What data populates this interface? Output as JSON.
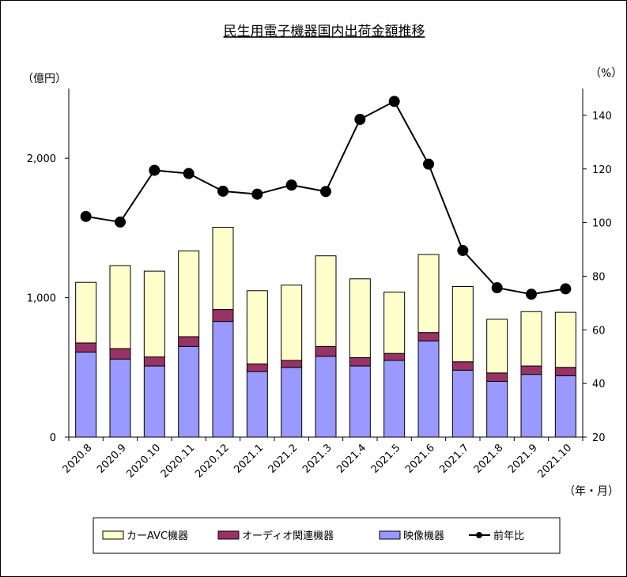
{
  "chart_data": {
    "type": "bar",
    "stacked": true,
    "title": "民生用電子機器国内出荷金額推移",
    "ylabel_left": "（億円）",
    "ylabel_right": "（%）",
    "xlabel": "（年・月）",
    "categories": [
      "2020.8",
      "2020.9",
      "2020.10",
      "2020.11",
      "2020.12",
      "2021.1",
      "2021.2",
      "2021.3",
      "2021.4",
      "2021.5",
      "2021.6",
      "2021.7",
      "2021.8",
      "2021.9",
      "2021.10"
    ],
    "ylim_left": [
      0,
      2500
    ],
    "yticks_left": [
      0,
      1000,
      2000
    ],
    "ytick_labels_left": [
      "0",
      "1,000",
      "2,000"
    ],
    "ylim_right": [
      20,
      150
    ],
    "yticks_right": [
      20,
      40,
      60,
      80,
      100,
      120,
      140
    ],
    "series": [
      {
        "name": "映像機器",
        "color": "#9999ff",
        "values": [
          610,
          560,
          510,
          650,
          830,
          470,
          500,
          580,
          510,
          550,
          690,
          480,
          400,
          450,
          440
        ]
      },
      {
        "name": "オーディオ関連機器",
        "color": "#993366",
        "values": [
          65,
          75,
          65,
          70,
          85,
          55,
          50,
          70,
          60,
          50,
          60,
          60,
          60,
          60,
          60
        ]
      },
      {
        "name": "カーAVC機器",
        "color": "#ffffcc",
        "values": [
          435,
          595,
          615,
          615,
          590,
          525,
          540,
          650,
          565,
          440,
          560,
          540,
          385,
          390,
          395
        ]
      }
    ],
    "line": {
      "name": "前年比",
      "axis": "right",
      "color": "#000000",
      "values": [
        102.3,
        100.2,
        119.5,
        118.3,
        111.7,
        110.6,
        114.0,
        111.6,
        138.5,
        145.2,
        121.8,
        89.6,
        75.7,
        73.3,
        75.3
      ]
    },
    "legend_order": [
      "カーAVC機器",
      "オーディオ関連機器",
      "映像機器",
      "前年比"
    ],
    "legend_position": "bottom",
    "grid": false
  }
}
